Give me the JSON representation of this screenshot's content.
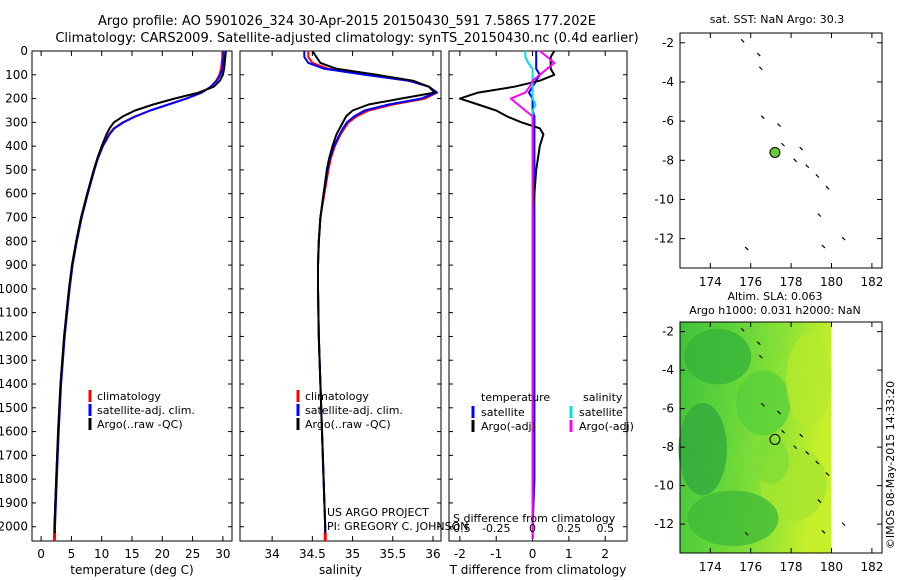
{
  "header": {
    "line1": "Argo profile: AO 5901026_324 30-Apr-2015 20150430_591 7.586S 177.202E",
    "line2": "Climatology: CARS2009. Satellite-adjusted climatology: synTS_20150430.nc (0.4d earlier)"
  },
  "footer": {
    "project": "US ARGO PROJECT",
    "pi": "PI: GREGORY C. JOHNSON",
    "credit": "©IMOS 08-May-2015 14:33:20"
  },
  "colors": {
    "climatology": "#ff0000",
    "satellite": "#0000ff",
    "argo": "#000000",
    "sal_satellite": "#00e0e0",
    "sal_argo": "#ff00ff",
    "marker": "#66cc33"
  },
  "depth_axis": {
    "ticks": [
      "0",
      "100",
      "200",
      "300",
      "400",
      "500",
      "600",
      "700",
      "800",
      "900",
      "1000",
      "1100",
      "1200",
      "1300",
      "1400",
      "1500",
      "1600",
      "1700",
      "1800",
      "1900",
      "2000"
    ]
  },
  "chart_data": [
    {
      "type": "line",
      "title": "",
      "xlabel": "temperature (deg C)",
      "ylabel": "",
      "xlim": [
        -1.5,
        31.5
      ],
      "ylim": [
        2060,
        0
      ],
      "xticks": [
        "0",
        "5",
        "10",
        "15",
        "20",
        "25",
        "30"
      ],
      "legend": [
        "climatology",
        "satellite-adj. clim.",
        "Argo(..raw -QC)"
      ],
      "depths": [
        0,
        25,
        50,
        75,
        100,
        125,
        150,
        175,
        200,
        225,
        250,
        275,
        300,
        325,
        350,
        400,
        450,
        500,
        600,
        700,
        800,
        900,
        1000,
        1200,
        1400,
        1600,
        1800,
        2000,
        2050
      ],
      "series": [
        {
          "name": "climatology",
          "values": [
            29.9,
            29.9,
            29.8,
            29.7,
            29.4,
            28.9,
            28,
            26.5,
            24,
            21,
            18,
            15.5,
            13.5,
            12,
            11.2,
            10.1,
            9.3,
            8.7,
            7.6,
            6.6,
            5.8,
            5.1,
            4.6,
            3.8,
            3.2,
            2.8,
            2.5,
            2.2,
            2.2
          ]
        },
        {
          "name": "satellite-adj. clim.",
          "values": [
            30.1,
            30.1,
            30,
            29.9,
            29.6,
            29,
            28,
            26.5,
            24,
            21,
            18,
            15.6,
            13.6,
            12.1,
            11.3,
            10.2,
            9.4,
            8.8,
            7.7,
            6.7,
            5.9,
            5.2,
            4.7,
            3.9,
            3.3,
            2.9,
            2.6,
            2.3,
            2.3
          ]
        },
        {
          "name": "Argo(..raw -QC)",
          "values": [
            30.5,
            30.4,
            30.3,
            30.2,
            30,
            29.5,
            28.5,
            26,
            22,
            18.5,
            15.5,
            13.5,
            12,
            11.3,
            10.8,
            10,
            9.3,
            8.7,
            7.6,
            6.6,
            5.8,
            5.1,
            4.6,
            3.8,
            3.2,
            2.8,
            2.5,
            2.2,
            2.2
          ]
        }
      ]
    },
    {
      "type": "line",
      "title": "",
      "xlabel": "salinity",
      "ylabel": "",
      "xlim": [
        33.6,
        36.1
      ],
      "ylim": [
        2060,
        0
      ],
      "xticks": [
        "34",
        "34.5",
        "35",
        "35.5",
        "36"
      ],
      "legend": [
        "climatology",
        "satellite-adj. clim.",
        "Argo(..raw -QC)"
      ],
      "depths": [
        0,
        25,
        50,
        75,
        100,
        125,
        150,
        175,
        200,
        225,
        250,
        275,
        300,
        325,
        350,
        400,
        450,
        500,
        600,
        700,
        800,
        900,
        1000,
        1200,
        1400,
        1600,
        1800,
        2000,
        2050
      ],
      "series": [
        {
          "name": "climatology",
          "values": [
            34.45,
            34.45,
            34.5,
            34.7,
            35.2,
            35.7,
            35.95,
            36.05,
            35.9,
            35.5,
            35.2,
            35.05,
            34.95,
            34.9,
            34.85,
            34.78,
            34.73,
            34.7,
            34.65,
            34.6,
            34.58,
            34.57,
            34.57,
            34.58,
            34.6,
            34.62,
            34.64,
            34.66,
            34.66
          ]
        },
        {
          "name": "satellite-adj. clim.",
          "values": [
            34.4,
            34.4,
            34.45,
            34.65,
            35.15,
            35.7,
            35.95,
            36.05,
            35.85,
            35.45,
            35.15,
            35.02,
            34.93,
            34.88,
            34.84,
            34.77,
            34.72,
            34.69,
            34.64,
            34.6,
            34.58,
            34.57,
            34.57,
            34.58,
            34.6,
            34.62,
            34.64,
            34.66,
            34.66
          ]
        },
        {
          "name": "Argo(..raw -QC)",
          "values": [
            34.5,
            34.55,
            34.6,
            34.8,
            35.3,
            35.75,
            35.95,
            36.02,
            35.6,
            35.2,
            35,
            34.92,
            34.88,
            34.84,
            34.8,
            34.75,
            34.71,
            34.68,
            34.64,
            34.6,
            34.58,
            34.57,
            34.57,
            34.58,
            34.6,
            34.62,
            34.64,
            34.66,
            34.66
          ]
        }
      ]
    },
    {
      "type": "line",
      "title": "",
      "xlabel": "T difference from climatology",
      "ylabel": "",
      "xlim": [
        -2.3,
        2.6
      ],
      "ylim": [
        2060,
        0
      ],
      "xticks": [
        "-2",
        "-1",
        "0",
        "1",
        "2"
      ],
      "secondary_label": "S difference from climatology",
      "secondary_xticks": [
        "-0.5",
        "-0.25",
        "0",
        "0.25",
        "0.5"
      ],
      "secondary_xlim": [
        -0.575,
        0.65
      ],
      "legend_left_title": "temperature",
      "legend_right_title": "salinity",
      "legend": [
        "satellite",
        "Argo(-adj)",
        "satellite",
        "Argo(-adj)"
      ],
      "depths": [
        0,
        25,
        50,
        75,
        100,
        125,
        150,
        175,
        200,
        225,
        250,
        275,
        300,
        325,
        350,
        400,
        450,
        500,
        600,
        700,
        800,
        900,
        1000,
        1200,
        1400,
        1600,
        1800,
        2000,
        2050
      ],
      "series": [
        {
          "name": "T satellite",
          "axis": "T",
          "values": [
            0.1,
            0.1,
            0.1,
            0.1,
            0.2,
            0.1,
            0,
            -0.1,
            0,
            0,
            0,
            0.05,
            0.05,
            0.05,
            0.05,
            0.05,
            0.05,
            0.05,
            0.05,
            0.05,
            0.05,
            0.05,
            0.05,
            0.05,
            0.05,
            0.05,
            0.05,
            0,
            0
          ]
        },
        {
          "name": "T Argo(-adj)",
          "axis": "T",
          "values": [
            0.6,
            0.5,
            0.5,
            0.5,
            0.6,
            0.2,
            -0.5,
            -1.5,
            -2,
            -1.5,
            -1,
            -0.7,
            -0.3,
            0.2,
            0.3,
            0.2,
            0.15,
            0.1,
            0.05,
            0,
            0,
            0,
            0,
            0,
            0,
            0,
            0,
            0,
            0
          ]
        },
        {
          "name": "S satellite",
          "axis": "S",
          "values": [
            -0.05,
            -0.05,
            -0.03,
            0,
            0,
            0,
            0,
            0,
            0,
            0.02,
            0,
            0,
            0,
            0,
            0,
            0,
            0,
            0,
            0,
            0,
            0,
            0,
            0,
            0,
            0,
            0,
            0,
            0,
            0
          ]
        },
        {
          "name": "S Argo(-adj)",
          "axis": "S",
          "values": [
            0.05,
            0.1,
            0.15,
            0.1,
            0.05,
            0,
            -0.02,
            -0.05,
            -0.15,
            -0.1,
            -0.05,
            0,
            0,
            0,
            0,
            0,
            0,
            0,
            0,
            0,
            0,
            0,
            0,
            0,
            0,
            0,
            0,
            0,
            0
          ]
        }
      ]
    },
    {
      "type": "scatter",
      "title": "sat. SST: NaN Argo: 30.3",
      "xlim": [
        172.5,
        182.5
      ],
      "ylim": [
        -13.5,
        -1.5
      ],
      "xticks": [
        "174",
        "176",
        "178",
        "180",
        "182"
      ],
      "yticks": [
        "-2",
        "-4",
        "-6",
        "-8",
        "-10",
        "-12"
      ],
      "profile": {
        "x": 177.2,
        "y": -7.6
      },
      "points": [
        {
          "x": 175.6,
          "y": -1.9
        },
        {
          "x": 176.4,
          "y": -2.6
        },
        {
          "x": 176.5,
          "y": -3.3
        },
        {
          "x": 176.6,
          "y": -5.8
        },
        {
          "x": 177.4,
          "y": -6.2
        },
        {
          "x": 177.6,
          "y": -7.2
        },
        {
          "x": 178.5,
          "y": -7.4
        },
        {
          "x": 178.2,
          "y": -8.0
        },
        {
          "x": 178.8,
          "y": -8.3
        },
        {
          "x": 179.3,
          "y": -8.8
        },
        {
          "x": 179.8,
          "y": -9.4
        },
        {
          "x": 179.4,
          "y": -10.8
        },
        {
          "x": 180.6,
          "y": -12.0
        },
        {
          "x": 179.6,
          "y": -12.4
        },
        {
          "x": 175.8,
          "y": -12.5
        }
      ]
    },
    {
      "type": "heatmap",
      "title": "Altim. SLA: 0.063",
      "subtitle": "Argo h1000: 0.031 h2000: NaN",
      "xlim": [
        172.5,
        182.5
      ],
      "ylim": [
        -13.5,
        -1.5
      ],
      "xticks": [
        "174",
        "176",
        "178",
        "180",
        "182"
      ],
      "yticks": [
        "-2",
        "-4",
        "-6",
        "-8",
        "-10",
        "-12"
      ],
      "profile": {
        "x": 177.2,
        "y": -7.6
      },
      "field_extent": {
        "lon": [
          172.5,
          180
        ],
        "lat": [
          -13.5,
          -1.5
        ]
      },
      "points": [
        {
          "x": 175.6,
          "y": -1.9
        },
        {
          "x": 176.4,
          "y": -2.6
        },
        {
          "x": 176.5,
          "y": -3.3
        },
        {
          "x": 176.6,
          "y": -5.8
        },
        {
          "x": 177.4,
          "y": -6.2
        },
        {
          "x": 177.6,
          "y": -7.2
        },
        {
          "x": 178.5,
          "y": -7.4
        },
        {
          "x": 178.2,
          "y": -8.0
        },
        {
          "x": 178.8,
          "y": -8.3
        },
        {
          "x": 179.3,
          "y": -8.8
        },
        {
          "x": 179.8,
          "y": -9.4
        },
        {
          "x": 179.4,
          "y": -10.8
        },
        {
          "x": 180.6,
          "y": -12.0
        },
        {
          "x": 179.6,
          "y": -12.4
        },
        {
          "x": 175.8,
          "y": -12.5
        }
      ]
    }
  ]
}
